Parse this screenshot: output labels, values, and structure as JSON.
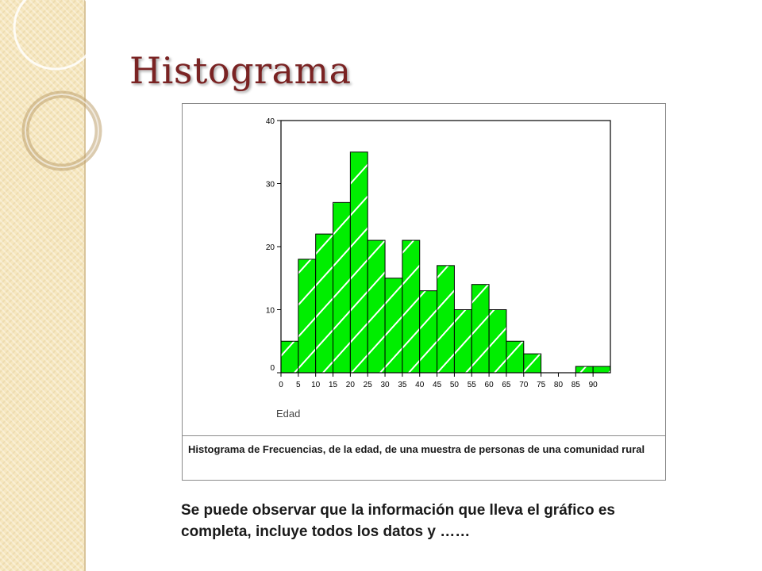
{
  "slide": {
    "title": "Histograma",
    "caption": "Histograma de Frecuencias, de la edad, de una muestra de personas de una comunidad rural",
    "body": "Se puede observar que la información que lleva el gráfico es completa, incluye todos los datos  y ……"
  },
  "colors": {
    "bar_fill": "#00ee00",
    "bar_stroke": "#000000",
    "stripe": "#ffffff",
    "title": "#7a2323",
    "side_band": "#f6e7bf"
  },
  "chart_data": {
    "type": "bar",
    "title": "",
    "xlabel": "Edad",
    "ylabel": "",
    "bin_edges": [
      0,
      5,
      10,
      15,
      20,
      25,
      30,
      35,
      40,
      45,
      50,
      55,
      60,
      65,
      70,
      75,
      80,
      85,
      90
    ],
    "values": [
      5,
      18,
      22,
      27,
      35,
      21,
      15,
      21,
      13,
      17,
      10,
      14,
      10,
      5,
      3,
      0,
      0,
      1,
      1
    ],
    "x_ticks": [
      0,
      5,
      10,
      15,
      20,
      25,
      30,
      35,
      40,
      45,
      50,
      55,
      60,
      65,
      70,
      75,
      80,
      85,
      90
    ],
    "y_ticks": [
      0,
      10,
      20,
      30,
      40
    ],
    "xlim": [
      0,
      95
    ],
    "ylim": [
      0,
      40
    ],
    "grid": false,
    "legend": "none"
  }
}
